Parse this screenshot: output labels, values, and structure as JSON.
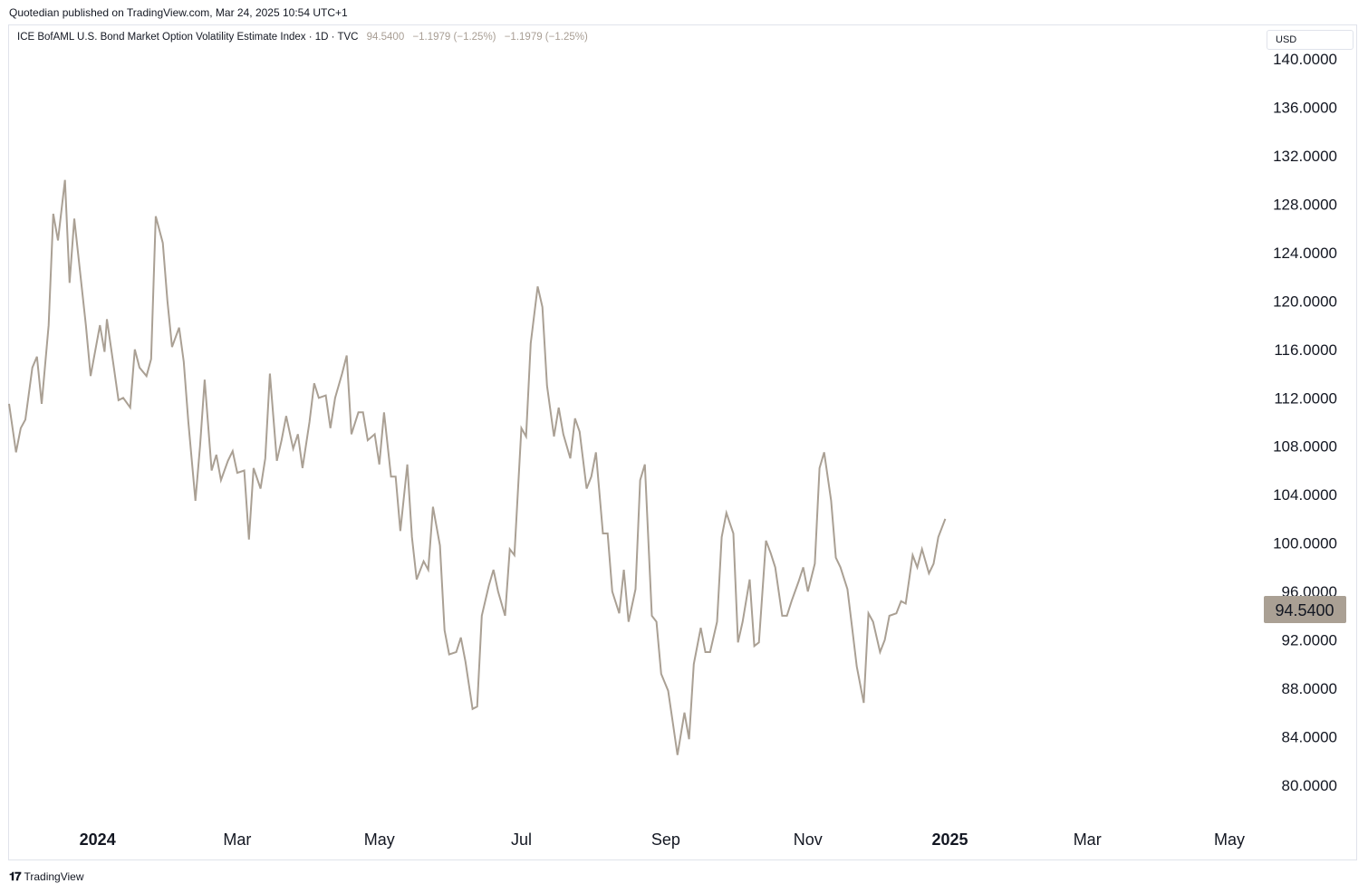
{
  "header": {
    "published": "Quotedian published on TradingView.com, Mar 24, 2025 10:54 UTC+1"
  },
  "legend": {
    "symbol": "ICE BofAML U.S. Bond Market Option Volatility Estimate Index · 1D · TVC",
    "last": "94.5400",
    "change1": "−1.1979 (−1.25%)",
    "change2": "−1.1979 (−1.25%)"
  },
  "currency": "USD",
  "price_tag": "94.5400",
  "footer": {
    "brand": "TradingView",
    "logo_icon": "tradingview-logo-icon"
  },
  "colors": {
    "line": "#aaa094",
    "price_tag_bg": "#aaa094",
    "price_tag_text": "#131722"
  },
  "chart_data": {
    "type": "line",
    "title": "ICE BofAML U.S. Bond Market Option Volatility Estimate Index · 1D · TVC",
    "ylim": [
      80,
      140
    ],
    "yticks": [
      "80.0000",
      "84.0000",
      "88.0000",
      "92.0000",
      "96.0000",
      "100.0000",
      "104.0000",
      "108.0000",
      "112.0000",
      "116.0000",
      "120.0000",
      "124.0000",
      "128.0000",
      "132.0000",
      "136.0000",
      "140.0000"
    ],
    "xticks": [
      {
        "label": "2024",
        "date": "2024-01-01",
        "bold": true
      },
      {
        "label": "Mar",
        "date": "2024-03-01",
        "bold": false
      },
      {
        "label": "May",
        "date": "2024-05-01",
        "bold": false
      },
      {
        "label": "Jul",
        "date": "2024-07-01",
        "bold": false
      },
      {
        "label": "Sep",
        "date": "2024-09-01",
        "bold": false
      },
      {
        "label": "Nov",
        "date": "2024-11-01",
        "bold": false
      },
      {
        "label": "2025",
        "date": "2025-01-01",
        "bold": true
      },
      {
        "label": "Mar",
        "date": "2025-03-01",
        "bold": false
      },
      {
        "label": "May",
        "date": "2025-05-01",
        "bold": false
      }
    ],
    "xlim": [
      "2023-11-24",
      "2025-05-15"
    ],
    "grid": false,
    "series": [
      {
        "points": [
          [
            "2023-11-24",
            111.5
          ],
          [
            "2023-11-27",
            107.5
          ],
          [
            "2023-11-29",
            109.5
          ],
          [
            "2023-12-01",
            110.2
          ],
          [
            "2023-12-04",
            114.5
          ],
          [
            "2023-12-06",
            115.4
          ],
          [
            "2023-12-08",
            111.5
          ],
          [
            "2023-12-11",
            118.0
          ],
          [
            "2023-12-13",
            127.2
          ],
          [
            "2023-12-15",
            125.0
          ],
          [
            "2023-12-18",
            130.0
          ],
          [
            "2023-12-20",
            121.5
          ],
          [
            "2023-12-22",
            126.8
          ],
          [
            "2023-12-27",
            118.0
          ],
          [
            "2023-12-29",
            113.8
          ],
          [
            "2024-01-02",
            118.0
          ],
          [
            "2024-01-04",
            115.8
          ],
          [
            "2024-01-05",
            118.5
          ],
          [
            "2024-01-08",
            114.5
          ],
          [
            "2024-01-10",
            111.8
          ],
          [
            "2024-01-12",
            112.0
          ],
          [
            "2024-01-15",
            111.2
          ],
          [
            "2024-01-17",
            116.0
          ],
          [
            "2024-01-19",
            114.5
          ],
          [
            "2024-01-22",
            113.8
          ],
          [
            "2024-01-24",
            115.2
          ],
          [
            "2024-01-26",
            127.0
          ],
          [
            "2024-01-29",
            124.8
          ],
          [
            "2024-01-31",
            120.0
          ],
          [
            "2024-02-02",
            116.2
          ],
          [
            "2024-02-05",
            117.8
          ],
          [
            "2024-02-07",
            115.0
          ],
          [
            "2024-02-09",
            110.0
          ],
          [
            "2024-02-12",
            103.5
          ],
          [
            "2024-02-14",
            108.0
          ],
          [
            "2024-02-16",
            113.5
          ],
          [
            "2024-02-19",
            106.0
          ],
          [
            "2024-02-21",
            107.3
          ],
          [
            "2024-02-23",
            105.2
          ],
          [
            "2024-02-26",
            106.8
          ],
          [
            "2024-02-28",
            107.6
          ],
          [
            "2024-03-01",
            105.8
          ],
          [
            "2024-03-04",
            106.0
          ],
          [
            "2024-03-06",
            100.3
          ],
          [
            "2024-03-08",
            106.2
          ],
          [
            "2024-03-11",
            104.5
          ],
          [
            "2024-03-13",
            107.0
          ],
          [
            "2024-03-15",
            114.0
          ],
          [
            "2024-03-18",
            106.8
          ],
          [
            "2024-03-20",
            108.5
          ],
          [
            "2024-03-22",
            110.5
          ],
          [
            "2024-03-25",
            107.8
          ],
          [
            "2024-03-27",
            109.0
          ],
          [
            "2024-03-29",
            106.2
          ],
          [
            "2024-04-01",
            110.0
          ],
          [
            "2024-04-03",
            113.2
          ],
          [
            "2024-04-05",
            112.0
          ],
          [
            "2024-04-08",
            112.2
          ],
          [
            "2024-04-10",
            109.5
          ],
          [
            "2024-04-12",
            112.0
          ],
          [
            "2024-04-15",
            114.0
          ],
          [
            "2024-04-17",
            115.5
          ],
          [
            "2024-04-19",
            109.0
          ],
          [
            "2024-04-22",
            110.8
          ],
          [
            "2024-04-24",
            110.8
          ],
          [
            "2024-04-26",
            108.5
          ],
          [
            "2024-04-29",
            109.0
          ],
          [
            "2024-05-01",
            106.5
          ],
          [
            "2024-05-03",
            110.8
          ],
          [
            "2024-05-06",
            105.5
          ],
          [
            "2024-05-08",
            105.5
          ],
          [
            "2024-05-10",
            101.0
          ],
          [
            "2024-05-13",
            106.5
          ],
          [
            "2024-05-15",
            100.5
          ],
          [
            "2024-05-17",
            97.0
          ],
          [
            "2024-05-20",
            98.5
          ],
          [
            "2024-05-22",
            97.8
          ],
          [
            "2024-05-24",
            103.0
          ],
          [
            "2024-05-27",
            99.8
          ],
          [
            "2024-05-29",
            92.8
          ],
          [
            "2024-05-31",
            90.8
          ],
          [
            "2024-06-03",
            91.0
          ],
          [
            "2024-06-05",
            92.2
          ],
          [
            "2024-06-07",
            90.2
          ],
          [
            "2024-06-10",
            86.3
          ],
          [
            "2024-06-12",
            86.5
          ],
          [
            "2024-06-14",
            94.0
          ],
          [
            "2024-06-17",
            96.5
          ],
          [
            "2024-06-19",
            97.8
          ],
          [
            "2024-06-21",
            96.0
          ],
          [
            "2024-06-24",
            94.0
          ],
          [
            "2024-06-26",
            99.5
          ],
          [
            "2024-06-28",
            99.0
          ],
          [
            "2024-07-01",
            109.5
          ],
          [
            "2024-07-03",
            108.8
          ],
          [
            "2024-07-05",
            116.5
          ],
          [
            "2024-07-08",
            121.2
          ],
          [
            "2024-07-10",
            119.5
          ],
          [
            "2024-07-12",
            113.0
          ],
          [
            "2024-07-15",
            108.8
          ],
          [
            "2024-07-17",
            111.2
          ],
          [
            "2024-07-19",
            109.0
          ],
          [
            "2024-07-22",
            107.0
          ],
          [
            "2024-07-24",
            110.3
          ],
          [
            "2024-07-26",
            109.2
          ],
          [
            "2024-07-29",
            104.5
          ],
          [
            "2024-07-31",
            105.5
          ],
          [
            "2024-08-02",
            107.5
          ],
          [
            "2024-08-05",
            100.8
          ],
          [
            "2024-08-07",
            100.8
          ],
          [
            "2024-08-09",
            96.0
          ],
          [
            "2024-08-12",
            94.2
          ],
          [
            "2024-08-14",
            97.8
          ],
          [
            "2024-08-16",
            93.5
          ],
          [
            "2024-08-19",
            96.2
          ],
          [
            "2024-08-21",
            105.2
          ],
          [
            "2024-08-23",
            106.5
          ],
          [
            "2024-08-26",
            94.0
          ],
          [
            "2024-08-28",
            93.5
          ],
          [
            "2024-08-30",
            89.2
          ],
          [
            "2024-09-02",
            87.8
          ],
          [
            "2024-09-04",
            85.2
          ],
          [
            "2024-09-06",
            82.5
          ],
          [
            "2024-09-09",
            86.0
          ],
          [
            "2024-09-11",
            83.8
          ],
          [
            "2024-09-13",
            90.0
          ],
          [
            "2024-09-16",
            93.0
          ],
          [
            "2024-09-18",
            91.0
          ],
          [
            "2024-09-20",
            91.0
          ],
          [
            "2024-09-23",
            93.5
          ],
          [
            "2024-09-25",
            100.5
          ],
          [
            "2024-09-27",
            102.5
          ],
          [
            "2024-09-30",
            100.8
          ],
          [
            "2024-10-02",
            91.8
          ],
          [
            "2024-10-04",
            93.5
          ],
          [
            "2024-10-07",
            97.0
          ],
          [
            "2024-10-09",
            91.5
          ],
          [
            "2024-10-11",
            91.8
          ],
          [
            "2024-10-14",
            100.2
          ],
          [
            "2024-10-16",
            99.2
          ],
          [
            "2024-10-18",
            98.0
          ],
          [
            "2024-10-21",
            94.0
          ],
          [
            "2024-10-23",
            94.0
          ],
          [
            "2024-10-25",
            95.2
          ],
          [
            "2024-10-28",
            96.8
          ],
          [
            "2024-10-30",
            98.0
          ],
          [
            "2024-11-01",
            96.0
          ],
          [
            "2024-11-04",
            98.3
          ],
          [
            "2024-11-06",
            106.2
          ],
          [
            "2024-11-08",
            107.5
          ],
          [
            "2024-11-11",
            103.5
          ],
          [
            "2024-11-13",
            98.8
          ],
          [
            "2024-11-15",
            98.0
          ],
          [
            "2024-11-18",
            96.2
          ],
          [
            "2024-11-20",
            93.0
          ],
          [
            "2024-11-22",
            89.8
          ],
          [
            "2024-11-25",
            86.8
          ],
          [
            "2024-11-27",
            94.2
          ],
          [
            "2024-11-29",
            93.5
          ],
          [
            "2024-12-02",
            91.0
          ],
          [
            "2024-12-04",
            92.0
          ],
          [
            "2024-12-06",
            94.0
          ],
          [
            "2024-12-09",
            94.2
          ],
          [
            "2024-12-11",
            95.2
          ],
          [
            "2024-12-13",
            95.0
          ],
          [
            "2024-12-16",
            99.0
          ],
          [
            "2024-12-18",
            98.0
          ],
          [
            "2024-12-20",
            99.5
          ],
          [
            "2024-12-23",
            97.5
          ],
          [
            "2024-12-25",
            98.3
          ],
          [
            "2024-12-27",
            100.5
          ],
          [
            "2024-12-30",
            102.0
          ]
        ]
      }
    ]
  }
}
